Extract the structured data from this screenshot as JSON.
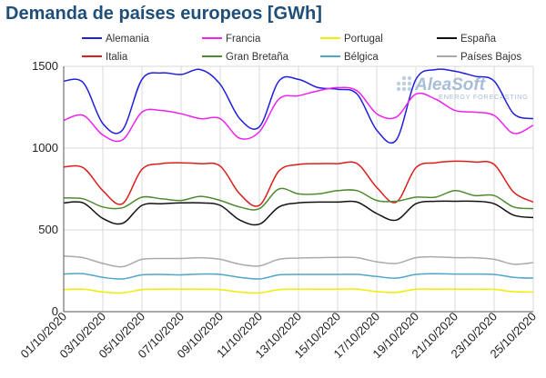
{
  "chart_data": {
    "type": "line",
    "title": "Demanda de países europeos [GWh]",
    "ylim": [
      0,
      1500
    ],
    "yticks": [
      0,
      500,
      1000,
      1500
    ],
    "x_dates": [
      "01/10/2020",
      "02/10/2020",
      "03/10/2020",
      "04/10/2020",
      "05/10/2020",
      "06/10/2020",
      "07/10/2020",
      "08/10/2020",
      "09/10/2020",
      "10/10/2020",
      "11/10/2020",
      "12/10/2020",
      "13/10/2020",
      "14/10/2020",
      "15/10/2020",
      "16/10/2020",
      "17/10/2020",
      "18/10/2020",
      "19/10/2020",
      "20/10/2020",
      "21/10/2020",
      "22/10/2020",
      "23/10/2020",
      "24/10/2020",
      "25/10/2020"
    ],
    "xtick_labels": [
      "01/10/2020",
      "03/10/2020",
      "05/10/2020",
      "07/10/2020",
      "09/10/2020",
      "11/10/2020",
      "13/10/2020",
      "15/10/2020",
      "17/10/2020",
      "19/10/2020",
      "21/10/2020",
      "23/10/2020",
      "25/10/2020"
    ],
    "grid": true,
    "legend_position": "top",
    "series": [
      {
        "name": "Alemania",
        "color": "#1f1fdc",
        "values": [
          1410,
          1400,
          1150,
          1110,
          1420,
          1460,
          1450,
          1480,
          1390,
          1180,
          1130,
          1410,
          1420,
          1370,
          1360,
          1330,
          1110,
          1050,
          1420,
          1480,
          1470,
          1440,
          1410,
          1210,
          1180
        ]
      },
      {
        "name": "Francia",
        "color": "#ee22ee",
        "values": [
          1170,
          1200,
          1080,
          1050,
          1220,
          1230,
          1210,
          1180,
          1180,
          1060,
          1100,
          1300,
          1320,
          1350,
          1370,
          1350,
          1210,
          1190,
          1330,
          1300,
          1230,
          1220,
          1200,
          1090,
          1140
        ]
      },
      {
        "name": "Portugal",
        "color": "#eeee00",
        "values": [
          135,
          138,
          120,
          115,
          135,
          138,
          138,
          138,
          135,
          120,
          115,
          135,
          138,
          138,
          138,
          138,
          122,
          118,
          137,
          138,
          138,
          137,
          136,
          122,
          120
        ]
      },
      {
        "name": "España",
        "color": "#111111",
        "values": [
          665,
          665,
          570,
          540,
          650,
          660,
          665,
          665,
          650,
          560,
          535,
          640,
          665,
          670,
          670,
          670,
          600,
          560,
          660,
          675,
          675,
          675,
          660,
          590,
          575
        ]
      },
      {
        "name": "Italia",
        "color": "#dd1c1c",
        "values": [
          885,
          880,
          740,
          660,
          870,
          905,
          910,
          905,
          890,
          720,
          650,
          860,
          900,
          905,
          905,
          905,
          760,
          670,
          880,
          910,
          920,
          915,
          900,
          730,
          670
        ]
      },
      {
        "name": "Gran Bretaña",
        "color": "#4e8a2e",
        "values": [
          695,
          690,
          640,
          635,
          700,
          690,
          680,
          705,
          680,
          640,
          630,
          750,
          720,
          720,
          740,
          740,
          680,
          675,
          700,
          700,
          740,
          710,
          710,
          640,
          630
        ]
      },
      {
        "name": "Bélgica",
        "color": "#4ea6c8",
        "values": [
          230,
          232,
          210,
          200,
          225,
          228,
          225,
          230,
          228,
          210,
          200,
          225,
          228,
          228,
          228,
          228,
          215,
          205,
          228,
          232,
          230,
          230,
          228,
          210,
          205
        ]
      },
      {
        "name": "Países Bajos",
        "color": "#aaaaaa",
        "values": [
          340,
          330,
          295,
          275,
          320,
          325,
          325,
          330,
          320,
          290,
          280,
          320,
          328,
          330,
          332,
          330,
          305,
          295,
          330,
          335,
          330,
          330,
          320,
          290,
          300
        ]
      }
    ]
  },
  "logo": {
    "main": "AleaSoft",
    "sub": "ENERGY FORECASTING"
  }
}
